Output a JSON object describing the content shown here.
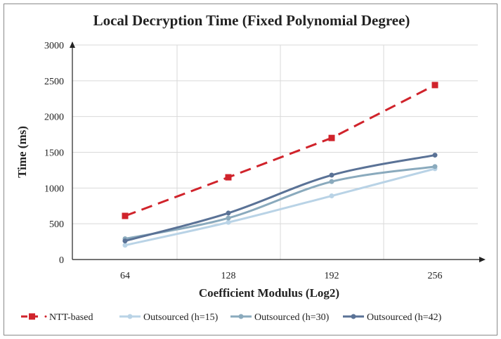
{
  "chart_data": {
    "type": "line",
    "title": "Local Decryption Time (Fixed Polynomial Degree)",
    "xlabel": "Coefficient Modulus (Log2)",
    "ylabel": "Time (ms)",
    "x": [
      64,
      128,
      192,
      256
    ],
    "x_tick_labels": [
      "64",
      "128",
      "192",
      "256"
    ],
    "ylim": [
      0,
      3000
    ],
    "y_ticks": [
      0,
      500,
      1000,
      1500,
      2000,
      2500,
      3000
    ],
    "grid": true,
    "legend_position": "bottom",
    "series": [
      {
        "name": "NTT-based",
        "legend_label": "NTT-based",
        "values": [
          610,
          1150,
          1700,
          2440
        ],
        "color": "#d0232b",
        "style": "dashed",
        "marker": "square"
      },
      {
        "name": "Outsourced (h=15)",
        "legend_label": "Outsourced (h=15)",
        "values": [
          200,
          520,
          890,
          1270
        ],
        "color": "#b9d3e6",
        "style": "solid",
        "marker": "circle"
      },
      {
        "name": "Outsourced (h=30)",
        "legend_label": "Outsourced (h=30)",
        "values": [
          290,
          580,
          1090,
          1300
        ],
        "color": "#8aaabd",
        "style": "solid",
        "marker": "circle"
      },
      {
        "name": "Outsourced (h=42)",
        "legend_label": "Outsourced (h=42)",
        "values": [
          260,
          650,
          1180,
          1460
        ],
        "color": "#5a7296",
        "style": "solid",
        "marker": "circle"
      }
    ]
  }
}
